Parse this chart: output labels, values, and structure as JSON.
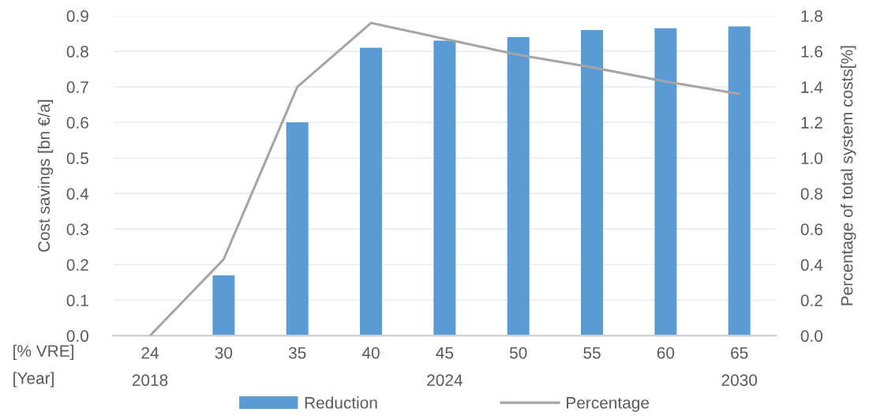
{
  "chart_data": {
    "type": "bar",
    "ylabel": "Cost savings [bn €/a]",
    "y2label": "Percentage of total system costs[%]",
    "xlabel": "[% VRE]\n[Year]",
    "categories": [
      "24\n2018",
      "30",
      "35",
      "40",
      "45\n2024",
      "50",
      "55",
      "60",
      "65\n2030"
    ],
    "series": [
      {
        "name": "Reduction",
        "color": "#5b9bd5",
        "values": [
          0,
          0.17,
          0.6,
          0.81,
          0.83,
          0.84,
          0.86,
          0.865,
          0.87
        ]
      },
      {
        "name": "Percentage",
        "type": "line",
        "axis": "y2",
        "color": "#a5a5a5",
        "values": [
          0,
          0.43,
          1.4,
          1.76,
          1.67,
          1.58,
          1.51,
          1.43,
          1.36
        ]
      }
    ],
    "ylim": [
      0,
      0.9
    ],
    "yticks": [
      {
        "value": 0,
        "label": "0.0"
      },
      0.1,
      0.2,
      0.3,
      0.4,
      0.5,
      0.6,
      0.7,
      0.8,
      0.9
    ],
    "y2lim": [
      0,
      1.8
    ],
    "y2ticks": [
      {
        "value": 0,
        "label": "0.0"
      },
      0.2,
      0.4,
      0.6,
      0.8,
      {
        "value": 1,
        "label": "1.0"
      },
      1.2,
      1.4,
      1.6,
      1.8
    ],
    "grid": "y",
    "legend": "bottom",
    "marker": "none",
    "line_style": "solid"
  }
}
